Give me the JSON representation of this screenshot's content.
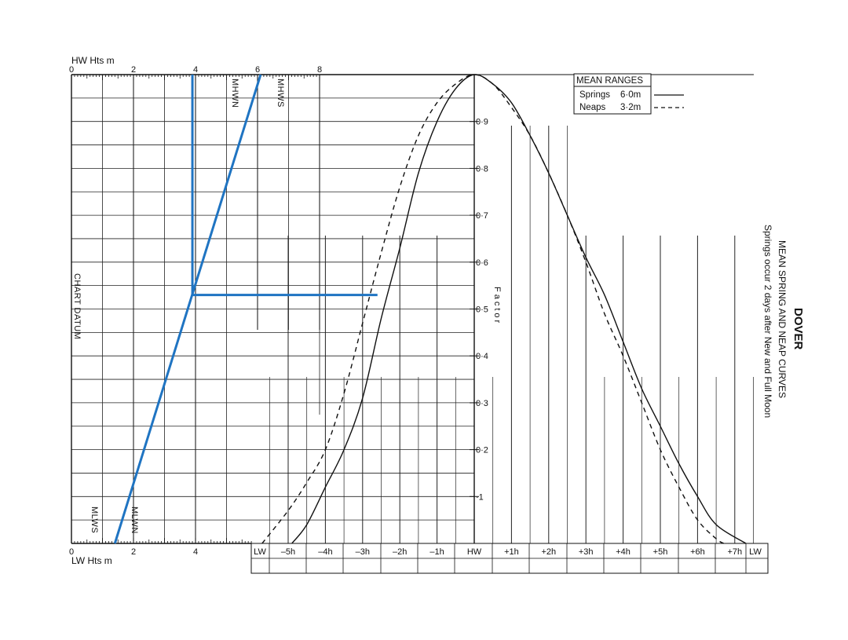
{
  "chart_data": {
    "type": "line",
    "title": "DOVER",
    "subtitle": "MEAN SPRING AND NEAP CURVES",
    "note": "Springs occur 2 days after New and Full Moon",
    "hw_axis": {
      "label": "HW Hts m",
      "ticks": [
        "0",
        "2",
        "4",
        "6",
        "8"
      ]
    },
    "lw_axis": {
      "label": "LW Hts m",
      "ticks": [
        "0",
        "2",
        "4"
      ]
    },
    "vertical_labels": {
      "mhwn": "MHWN",
      "mhws": "MHWS",
      "mlws": "MLWS",
      "mlwn": "MLWN",
      "chart_datum": "CHART DATUM"
    },
    "factor_label": "Factor",
    "factor_ticks": [
      "·1",
      "0·2",
      "0·3",
      "0·4",
      "0·5",
      "0·6",
      "0·7",
      "0·8",
      "0·9"
    ],
    "time_ticks": [
      "LW",
      "–5h",
      "–4h",
      "–3h",
      "–2h",
      "–1h",
      "HW",
      "+1h",
      "+2h",
      "+3h",
      "+4h",
      "+5h",
      "+6h",
      "+7h",
      "LW"
    ],
    "legend": {
      "title": "MEAN RANGES",
      "entries": [
        {
          "label": "Springs",
          "value": "6·0m",
          "style": "solid"
        },
        {
          "label": "Neaps",
          "value": "3·2m",
          "style": "dashed"
        }
      ]
    },
    "series": [
      {
        "name": "Springs",
        "style": "solid",
        "x_hours": [
          -4.9,
          -4.5,
          -4,
          -3.5,
          -3,
          -2.5,
          -2,
          -1.5,
          -1,
          -0.5,
          0,
          0.5,
          1,
          1.5,
          2,
          2.5,
          3,
          3.5,
          4,
          4.5,
          5,
          5.5,
          6,
          6.5,
          7.3
        ],
        "factor": [
          0,
          0.04,
          0.12,
          0.2,
          0.31,
          0.48,
          0.63,
          0.79,
          0.9,
          0.97,
          1.0,
          0.98,
          0.94,
          0.87,
          0.79,
          0.7,
          0.61,
          0.53,
          0.43,
          0.33,
          0.25,
          0.17,
          0.1,
          0.04,
          0
        ]
      },
      {
        "name": "Neaps",
        "style": "dashed",
        "x_hours": [
          -5.7,
          -5,
          -4.5,
          -4,
          -3.5,
          -3,
          -2.5,
          -2,
          -1.5,
          -1,
          -0.5,
          0,
          0.5,
          1,
          1.5,
          2,
          2.5,
          3,
          3.5,
          4,
          4.5,
          5,
          5.5,
          6,
          6.5,
          6.7
        ],
        "factor": [
          0,
          0.07,
          0.13,
          0.2,
          0.32,
          0.47,
          0.62,
          0.76,
          0.87,
          0.94,
          0.98,
          1.0,
          0.98,
          0.93,
          0.87,
          0.79,
          0.7,
          0.6,
          0.49,
          0.4,
          0.3,
          0.2,
          0.12,
          0.05,
          0.01,
          0
        ]
      }
    ],
    "example_construction": {
      "hw_height_m": 6.1,
      "lw_height_m": 1.4,
      "height_m": 3.9,
      "factor": 0.53,
      "color": "#1f74c2"
    },
    "colors": {
      "ink": "#111111",
      "construction": "#1f74c2"
    }
  }
}
